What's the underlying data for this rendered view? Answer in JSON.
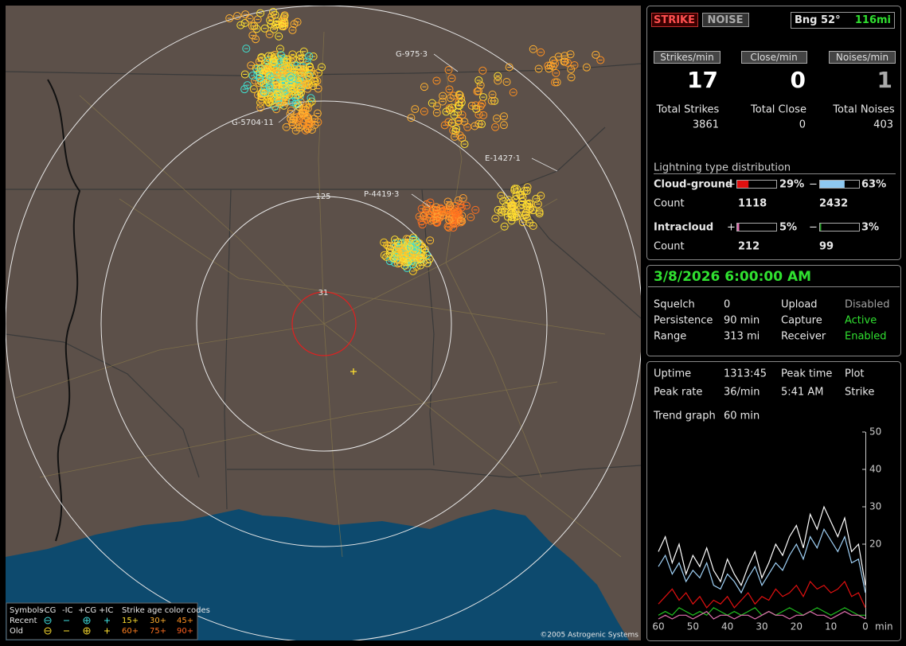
{
  "header": {
    "strike_button": "STRIKE",
    "noise_button": "NOISE",
    "bearing": "Bng 52°",
    "distance": "116mi"
  },
  "rates": [
    {
      "label": "Strikes/min",
      "value": 17,
      "total_label": "Total Strikes",
      "total": 3861
    },
    {
      "label": "Close/min",
      "value": 0,
      "total_label": "Total Close",
      "total": 0
    },
    {
      "label": "Noises/min",
      "value": 1,
      "total_label": "Total Noises",
      "total": 403
    }
  ],
  "distribution": {
    "title": "Lightning type distribution",
    "plus_sign": "+",
    "minus_sign": "−",
    "count_label": "Count",
    "rows": [
      {
        "name": "Cloud-ground",
        "plus": {
          "value": 29,
          "label": "29%"
        },
        "minus": {
          "value": 63,
          "label": "63%"
        },
        "plus_count": 1118,
        "minus_count": 2432,
        "plus_color": "#e01010",
        "minus_color": "#8ec8f0"
      },
      {
        "name": "Intracloud",
        "plus": {
          "value": 5,
          "label": "5%"
        },
        "minus": {
          "value": 3,
          "label": "3%"
        },
        "plus_count": 212,
        "minus_count": 99,
        "plus_color": "#e070b0",
        "minus_color": "#20a020"
      }
    ]
  },
  "status": {
    "date": "3/8/2026 6:00:00 AM",
    "rows": [
      [
        {
          "label": "Squelch",
          "value": "0"
        },
        {
          "label": "Upload",
          "value": "Disabled",
          "color": "#a0a0a0"
        }
      ],
      [
        {
          "label": "Persistence",
          "value": "90 min"
        },
        {
          "label": "Capture",
          "value": "Active",
          "color": "#30e030"
        }
      ],
      [
        {
          "label": "Range",
          "value": "313 mi"
        },
        {
          "label": "Receiver",
          "value": "Enabled",
          "color": "#30e030"
        }
      ]
    ]
  },
  "stats": {
    "uptime_label": "Uptime",
    "uptime": "1313:45",
    "peak_time_label": "Peak time",
    "peak_time": "5:41 AM",
    "plot_label": "Plot",
    "plot": "Strike",
    "peak_rate_label": "Peak rate",
    "peak_rate": "36/min",
    "trend_label": "Trend graph",
    "trend": "60 min"
  },
  "chart_data": {
    "type": "line",
    "x_label": "min",
    "xlim": [
      60,
      0
    ],
    "xticks": [
      60,
      50,
      40,
      30,
      20,
      10,
      0
    ],
    "ylim": [
      0,
      50
    ],
    "yticks": [
      20,
      30,
      40,
      50
    ],
    "x": [
      60,
      58,
      56,
      54,
      52,
      50,
      48,
      46,
      44,
      42,
      40,
      38,
      36,
      34,
      32,
      30,
      28,
      26,
      24,
      22,
      20,
      18,
      16,
      14,
      12,
      10,
      8,
      6,
      4,
      2,
      0
    ],
    "series": [
      {
        "color": "#ffffff",
        "values": [
          18,
          22,
          15,
          20,
          12,
          17,
          14,
          19,
          13,
          10,
          16,
          12,
          9,
          14,
          18,
          11,
          15,
          20,
          17,
          22,
          25,
          19,
          28,
          24,
          30,
          26,
          22,
          27,
          18,
          20,
          9
        ]
      },
      {
        "color": "#9fd0f5",
        "values": [
          14,
          17,
          12,
          15,
          10,
          13,
          11,
          15,
          9,
          8,
          12,
          10,
          7,
          11,
          14,
          9,
          12,
          15,
          13,
          17,
          20,
          16,
          22,
          19,
          24,
          21,
          18,
          22,
          15,
          16,
          7
        ]
      },
      {
        "color": "#e01010",
        "values": [
          4,
          6,
          8,
          5,
          7,
          4,
          6,
          3,
          5,
          4,
          6,
          3,
          5,
          7,
          4,
          6,
          5,
          8,
          6,
          7,
          9,
          6,
          10,
          8,
          9,
          7,
          8,
          10,
          6,
          7,
          3
        ]
      },
      {
        "color": "#20c020",
        "values": [
          1,
          2,
          1,
          3,
          2,
          1,
          2,
          1,
          3,
          2,
          1,
          2,
          1,
          2,
          3,
          1,
          2,
          1,
          2,
          3,
          2,
          1,
          2,
          3,
          2,
          1,
          2,
          3,
          2,
          1,
          1
        ]
      },
      {
        "color": "#e070b0",
        "values": [
          0,
          1,
          0,
          1,
          1,
          0,
          1,
          2,
          0,
          1,
          1,
          0,
          1,
          1,
          0,
          1,
          2,
          1,
          1,
          0,
          1,
          1,
          2,
          1,
          1,
          0,
          1,
          2,
          1,
          1,
          0
        ]
      }
    ]
  },
  "map": {
    "ring_labels": [
      "125",
      "31"
    ],
    "strike_labels": [
      "G-975·3",
      "G-5704·11",
      "E-1427·1",
      "P-4419·3"
    ],
    "copyright": "©2005 Astrogenic Systems",
    "legend": {
      "symbols_label": "Symbols",
      "symbol_names": [
        "-CG",
        "-IC",
        "+CG",
        "+IC"
      ],
      "age_title": "Strike age color codes",
      "recent_label": "Recent",
      "old_label": "Old",
      "recent_ages": [
        "15+",
        "30+",
        "45+"
      ],
      "old_ages": [
        "60+",
        "75+",
        "90+"
      ]
    }
  }
}
